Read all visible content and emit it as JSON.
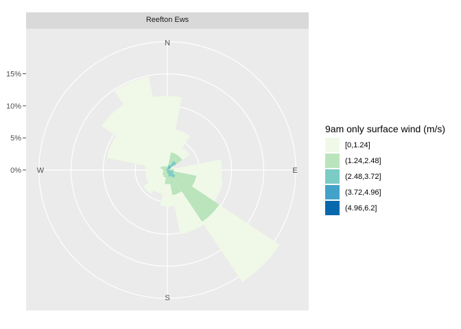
{
  "chart_data": {
    "type": "bar",
    "coord": "polar",
    "panel_title": "Reefton Ews",
    "direction_labels": [
      "N",
      "E",
      "S",
      "W"
    ],
    "radial_ticks": [
      {
        "value": 0,
        "label": "0%"
      },
      {
        "value": 5,
        "label": "5%"
      },
      {
        "value": 10,
        "label": "10%"
      },
      {
        "value": 15,
        "label": "15%"
      }
    ],
    "radial_max": 22,
    "sector_width_deg": 22.5,
    "legend_title": "9am only surface wind (m/s)",
    "legend_placement": "right",
    "series": [
      {
        "name": "[0,1.24]",
        "color": "#f0f9e8"
      },
      {
        "name": "(1.24,2.48]",
        "color": "#bae4bc"
      },
      {
        "name": "(2.48,3.72]",
        "color": "#7bccc4"
      },
      {
        "name": "(3.72,4.96]",
        "color": "#43a2ca"
      },
      {
        "name": "(4.96,6.2]",
        "color": "#0868ac"
      }
    ],
    "directions_deg": [
      0,
      22.5,
      45,
      67.5,
      90,
      112.5,
      135,
      157.5,
      180,
      202.5,
      225,
      247.5,
      270,
      292.5,
      315,
      337.5
    ],
    "stacked_cumulative": [
      [
        11.5,
        0.6,
        0.3,
        0,
        0
      ],
      [
        6.4,
        2.8,
        0.8,
        0.2,
        0
      ],
      [
        4.2,
        2.8,
        1.7,
        0.6,
        0.1
      ],
      [
        1.1,
        0.6,
        0.1,
        0,
        0
      ],
      [
        8.5,
        1.0,
        0.1,
        0,
        0
      ],
      [
        8.8,
        4.6,
        1.0,
        0.2,
        0
      ],
      [
        21.0,
        9.7,
        1.5,
        0.3,
        0
      ],
      [
        10.2,
        4.0,
        1.1,
        0.2,
        0
      ],
      [
        5.7,
        2.2,
        0.5,
        0.1,
        0
      ],
      [
        3.8,
        1.2,
        0.2,
        0,
        0
      ],
      [
        4.5,
        1.0,
        0.2,
        0,
        0
      ],
      [
        3.5,
        0.7,
        0.1,
        0,
        0
      ],
      [
        3.4,
        0.7,
        0.2,
        0,
        0
      ],
      [
        9.6,
        1.1,
        0.3,
        0,
        0
      ],
      [
        12.3,
        0.8,
        0.2,
        0,
        0
      ],
      [
        14.8,
        0.6,
        0.2,
        0,
        0
      ]
    ]
  }
}
